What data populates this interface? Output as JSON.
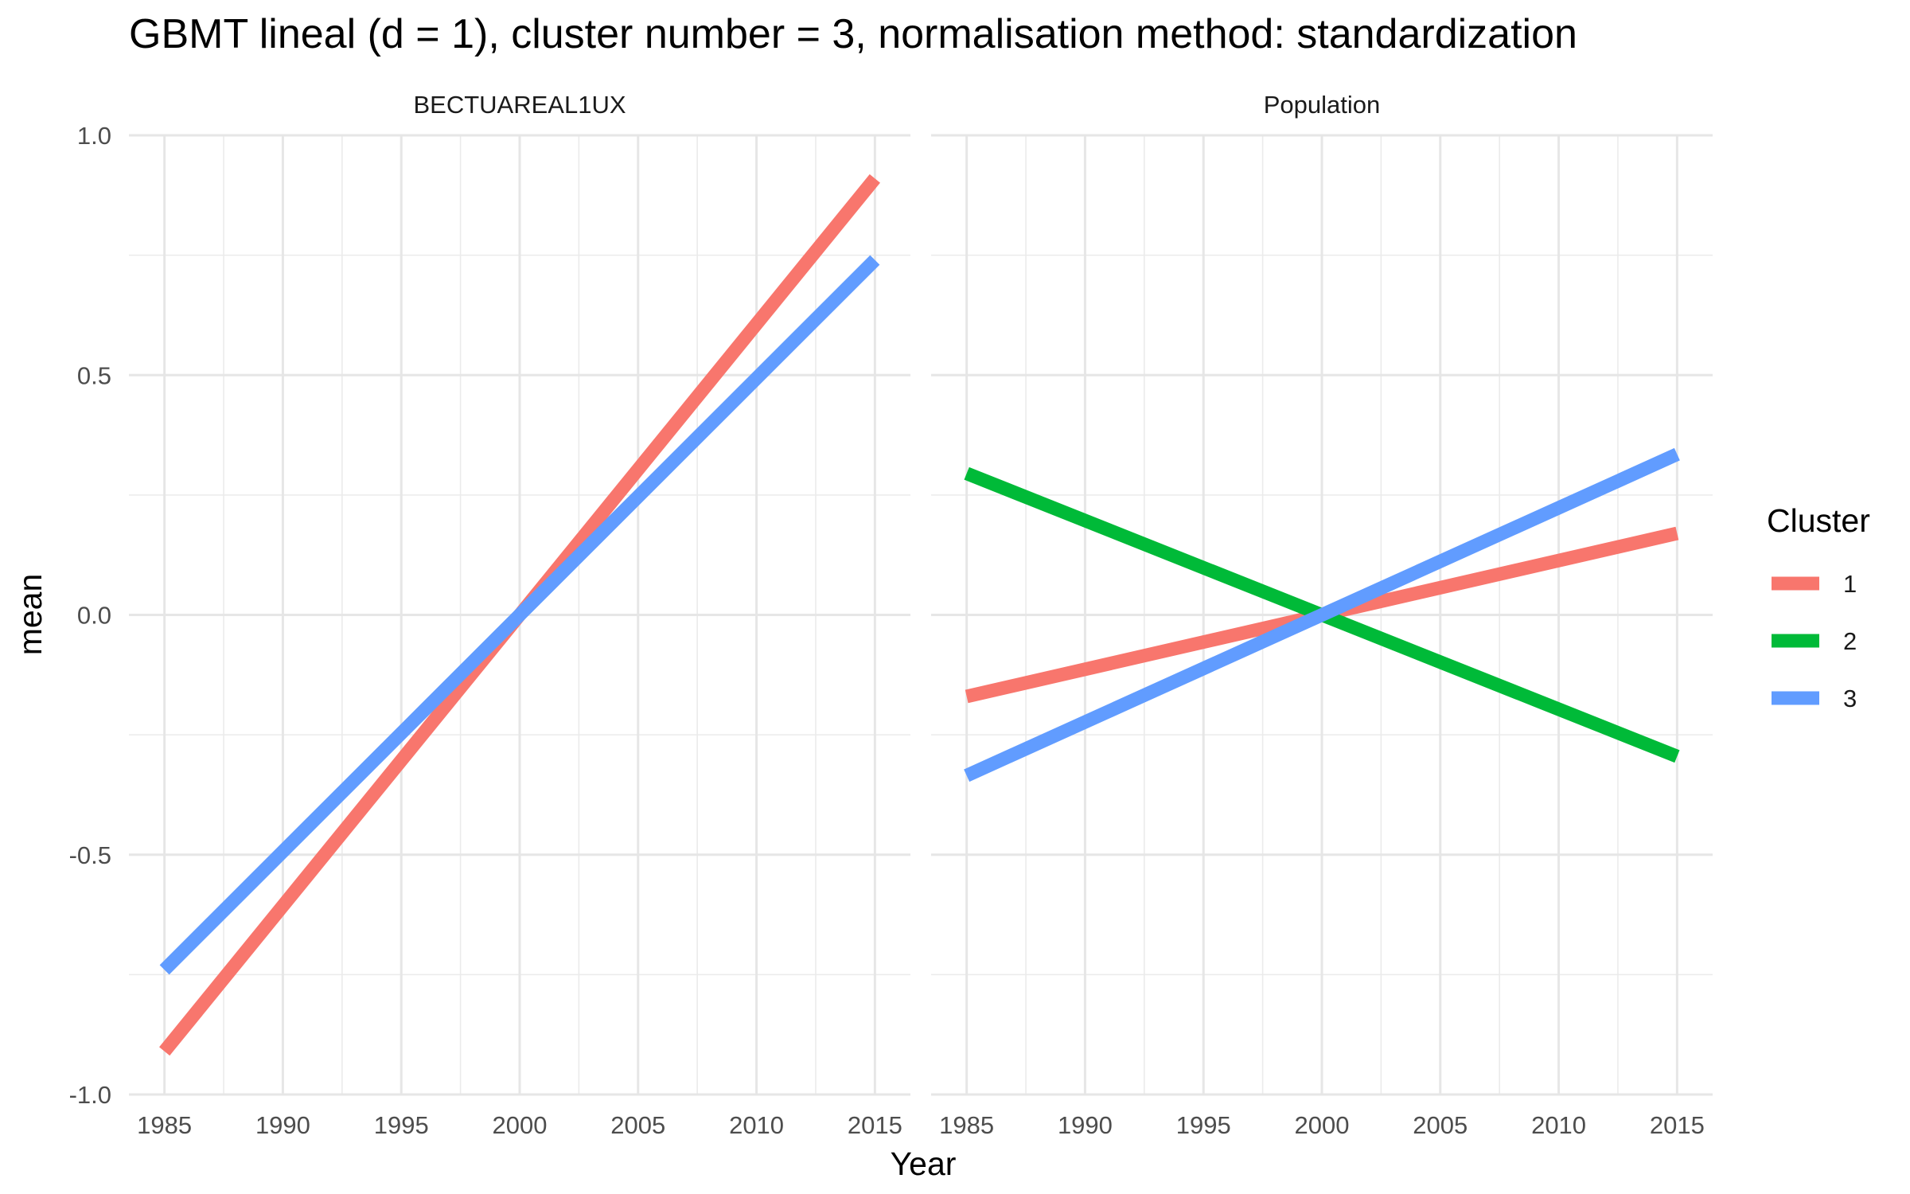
{
  "chart_data": {
    "type": "line",
    "title": "GBMT lineal (d = 1), cluster number = 3, normalisation method: standardization",
    "xlabel": "Year",
    "ylabel": "mean",
    "xlim": [
      1983.5,
      2016.5
    ],
    "ylim": [
      -1.0,
      1.0
    ],
    "x_ticks": [
      1985,
      1990,
      1995,
      2000,
      2005,
      2010,
      2015
    ],
    "x_tick_labels": [
      "1985",
      "1990",
      "1995",
      "2000",
      "2005",
      "2010",
      "2015"
    ],
    "y_ticks": [
      -1.0,
      -0.5,
      0.0,
      0.5,
      1.0
    ],
    "y_tick_labels": [
      "-1.0",
      "-0.5",
      "0.0",
      "0.5",
      "1.0"
    ],
    "grid": true,
    "legend": {
      "title": "Cluster",
      "position": "right",
      "entries": [
        {
          "label": "1",
          "color": "#F8766D"
        },
        {
          "label": "2",
          "color": "#00BA38"
        },
        {
          "label": "3",
          "color": "#619CFF"
        }
      ]
    },
    "panels": [
      {
        "strip_label": "BECTUAREAL1UX",
        "series": [
          {
            "name": "1",
            "color": "#F8766D",
            "x": [
              1985,
              2015
            ],
            "y": [
              -0.91,
              0.91
            ]
          },
          {
            "name": "3",
            "color": "#619CFF",
            "x": [
              1985,
              2015
            ],
            "y": [
              -0.74,
              0.74
            ]
          }
        ]
      },
      {
        "strip_label": "Population",
        "series": [
          {
            "name": "1",
            "color": "#F8766D",
            "x": [
              1985,
              2015
            ],
            "y": [
              -0.17,
              0.17
            ]
          },
          {
            "name": "2",
            "color": "#00BA38",
            "x": [
              1985,
              2015
            ],
            "y": [
              0.295,
              -0.295
            ]
          },
          {
            "name": "3",
            "color": "#619CFF",
            "x": [
              1985,
              2015
            ],
            "y": [
              -0.335,
              0.335
            ]
          }
        ]
      }
    ]
  }
}
